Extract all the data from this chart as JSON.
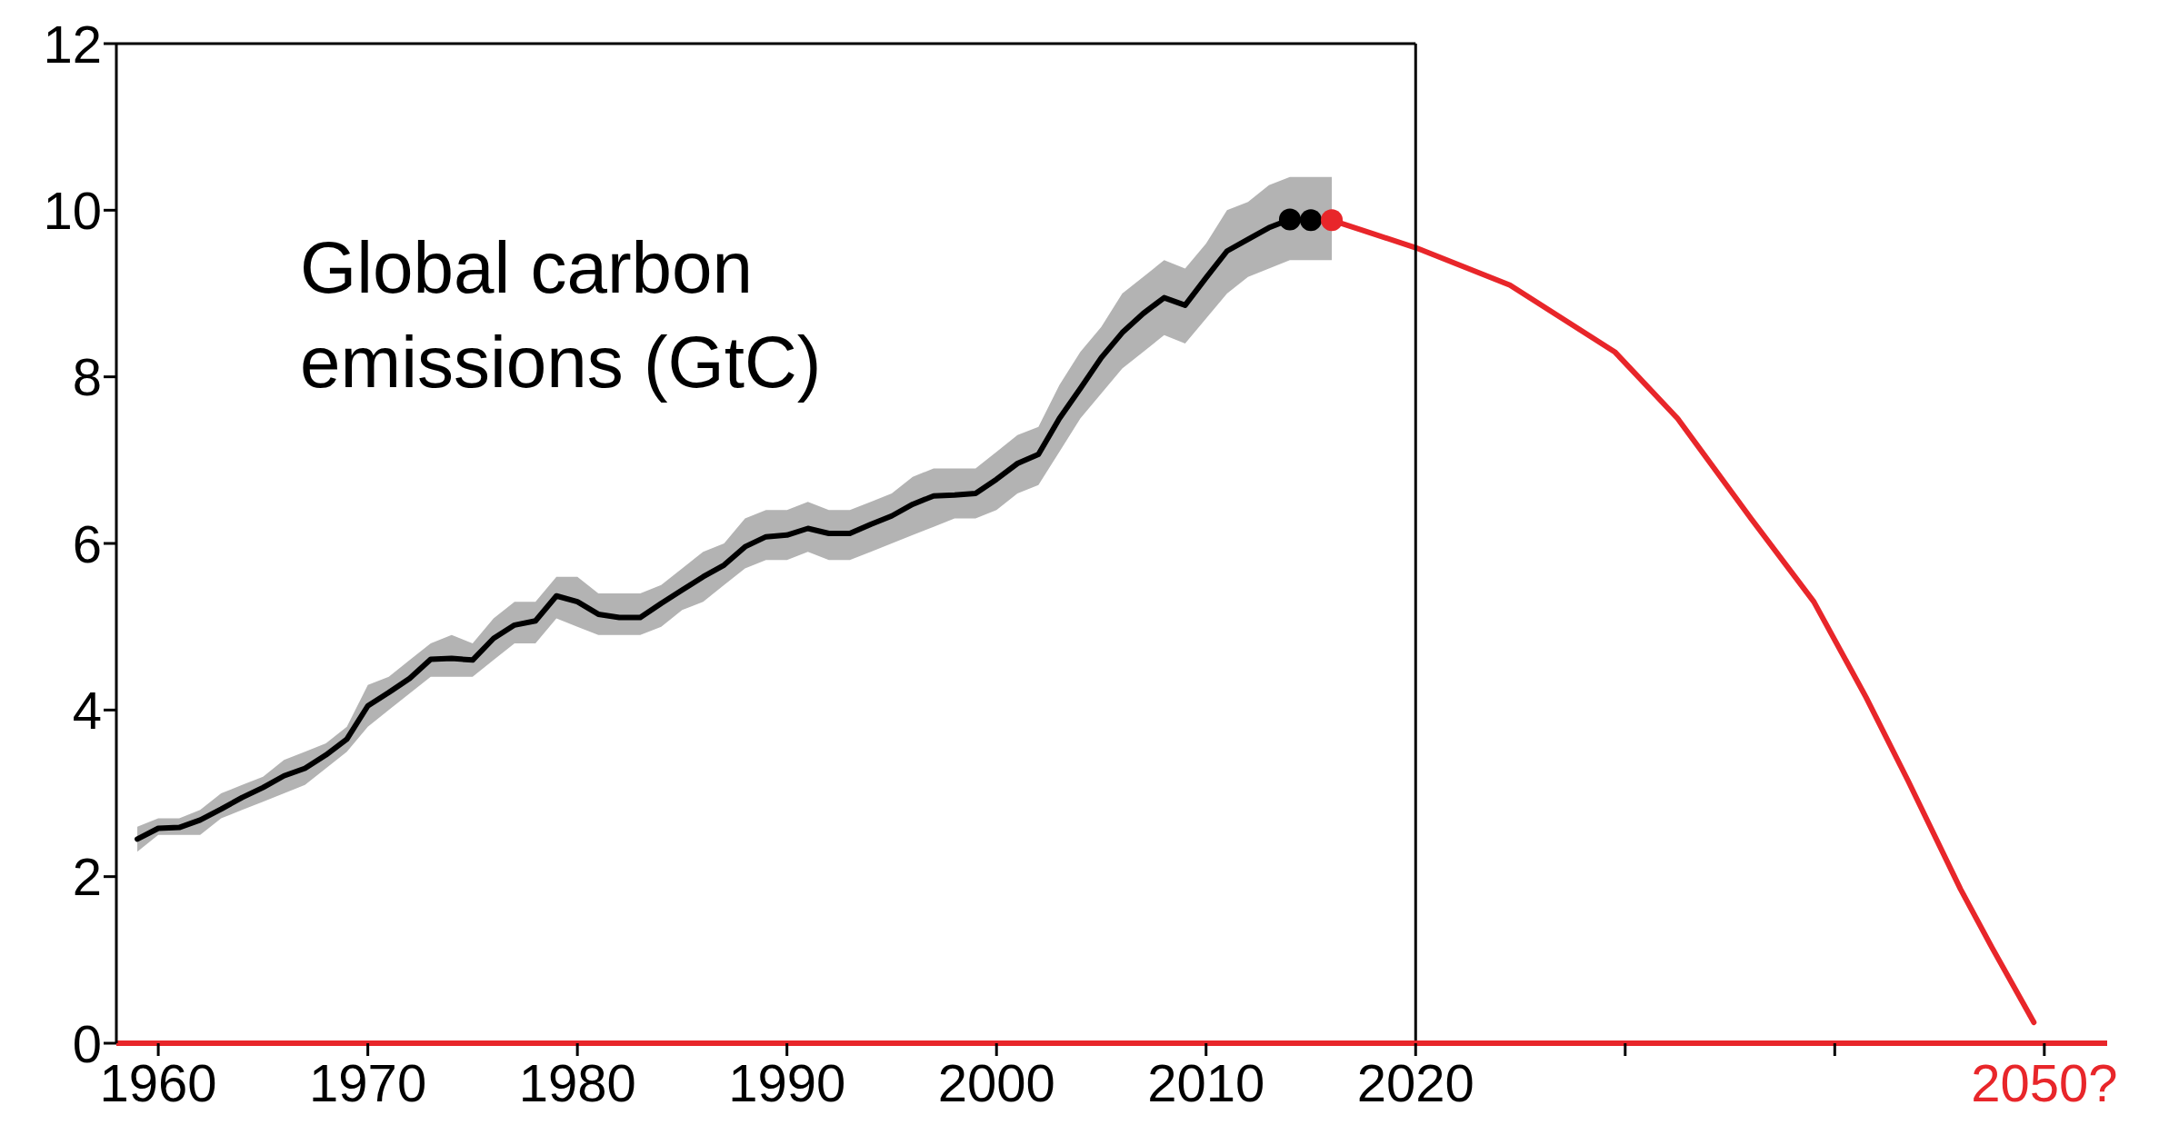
{
  "chart_data": {
    "type": "line",
    "annotations": [
      "Global carbon emissions (GtC)"
    ],
    "xlim": [
      1958,
      2053
    ],
    "xticks": [
      1960,
      1970,
      1980,
      1990,
      2000,
      2010,
      2020,
      {
        "value": 2030,
        "label": null
      },
      {
        "value": 2040,
        "label": null
      },
      {
        "value": 2050,
        "label": "2050?"
      }
    ],
    "ylim": [
      0,
      12
    ],
    "yticks": [
      0,
      2,
      4,
      6,
      8,
      10,
      12
    ],
    "ref_lines": [
      {
        "axis": "x",
        "value": 2020,
        "color": "#000000"
      }
    ],
    "series": [
      {
        "color": "#000000",
        "x": [
          1959,
          1960,
          1961,
          1962,
          1963,
          1964,
          1965,
          1966,
          1967,
          1968,
          1969,
          1970,
          1971,
          1972,
          1973,
          1974,
          1975,
          1976,
          1977,
          1978,
          1979,
          1980,
          1981,
          1982,
          1983,
          1984,
          1985,
          1986,
          1987,
          1988,
          1989,
          1990,
          1991,
          1992,
          1993,
          1994,
          1995,
          1996,
          1997,
          1998,
          1999,
          2000,
          2001,
          2002,
          2003,
          2004,
          2005,
          2006,
          2007,
          2008,
          2009,
          2010,
          2011,
          2012,
          2013,
          2014,
          2015,
          2016
        ],
        "values": [
          2.45,
          2.58,
          2.59,
          2.68,
          2.81,
          2.95,
          3.07,
          3.21,
          3.3,
          3.46,
          3.65,
          4.05,
          4.21,
          4.38,
          4.61,
          4.62,
          4.6,
          4.86,
          5.02,
          5.07,
          5.37,
          5.3,
          5.15,
          5.11,
          5.11,
          5.28,
          5.44,
          5.6,
          5.74,
          5.96,
          6.08,
          6.1,
          6.18,
          6.12,
          6.12,
          6.23,
          6.33,
          6.47,
          6.57,
          6.58,
          6.6,
          6.77,
          6.96,
          7.07,
          7.5,
          7.86,
          8.23,
          8.53,
          8.76,
          8.95,
          8.86,
          9.19,
          9.51,
          9.65,
          9.79,
          9.89,
          9.88,
          null
        ],
        "lower": [
          2.3,
          2.5,
          2.5,
          2.5,
          2.7,
          2.8,
          2.9,
          3.0,
          3.1,
          3.3,
          3.5,
          3.8,
          4.0,
          4.2,
          4.4,
          4.4,
          4.4,
          4.6,
          4.8,
          4.8,
          5.1,
          5.0,
          4.9,
          4.9,
          4.9,
          5.0,
          5.2,
          5.3,
          5.5,
          5.7,
          5.8,
          5.8,
          5.9,
          5.8,
          5.8,
          5.9,
          6.0,
          6.1,
          6.2,
          6.3,
          6.3,
          6.4,
          6.6,
          6.7,
          7.1,
          7.5,
          7.8,
          8.1,
          8.3,
          8.5,
          8.4,
          8.7,
          9.0,
          9.2,
          9.3,
          9.4,
          9.4,
          9.4
        ],
        "upper": [
          2.6,
          2.7,
          2.7,
          2.8,
          3.0,
          3.1,
          3.2,
          3.4,
          3.5,
          3.6,
          3.8,
          4.3,
          4.4,
          4.6,
          4.8,
          4.9,
          4.8,
          5.1,
          5.3,
          5.3,
          5.6,
          5.6,
          5.4,
          5.4,
          5.4,
          5.5,
          5.7,
          5.9,
          6.0,
          6.3,
          6.4,
          6.4,
          6.5,
          6.4,
          6.4,
          6.5,
          6.6,
          6.8,
          6.9,
          6.9,
          6.9,
          7.1,
          7.3,
          7.4,
          7.9,
          8.3,
          8.6,
          9.0,
          9.2,
          9.4,
          9.3,
          9.6,
          10.0,
          10.1,
          10.3,
          10.4,
          10.4,
          10.4
        ]
      },
      {
        "type": "scatter",
        "x": [
          2014,
          2015,
          2016
        ],
        "values": [
          9.89,
          9.88,
          9.88
        ],
        "colors": [
          "#000000",
          "#000000",
          "#e8262a"
        ]
      },
      {
        "color": "#e8262a",
        "x": [
          2016,
          2020,
          2024.5,
          2029.5,
          2032.5,
          2036,
          2039,
          2041.5,
          2043.5,
          2046,
          2047.5,
          2049.5
        ],
        "values": [
          9.88,
          9.55,
          9.1,
          8.3,
          7.5,
          6.3,
          5.3,
          4.15,
          3.15,
          1.85,
          1.15,
          0.25
        ]
      }
    ]
  }
}
